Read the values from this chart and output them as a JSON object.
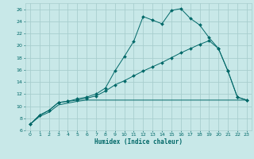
{
  "xlabel": "Humidex (Indice chaleur)",
  "background_color": "#c8e8e8",
  "grid_color": "#a8cece",
  "line_color": "#006868",
  "xlim": [
    -0.5,
    23.5
  ],
  "ylim": [
    6,
    27
  ],
  "yticks": [
    6,
    8,
    10,
    12,
    14,
    16,
    18,
    20,
    22,
    24,
    26
  ],
  "xticks": [
    0,
    1,
    2,
    3,
    4,
    5,
    6,
    7,
    8,
    9,
    10,
    11,
    12,
    13,
    14,
    15,
    16,
    17,
    18,
    19,
    20,
    21,
    22,
    23
  ],
  "line1_x": [
    0,
    1,
    2,
    3,
    4,
    5,
    6,
    7,
    8,
    9,
    10,
    11,
    12,
    13,
    14,
    15,
    16,
    17,
    18,
    19,
    20,
    21,
    22,
    23
  ],
  "line1_y": [
    7.0,
    8.5,
    9.3,
    10.6,
    10.8,
    11.2,
    11.5,
    12.0,
    13.0,
    15.8,
    18.2,
    20.7,
    24.8,
    24.2,
    23.6,
    25.8,
    26.1,
    24.5,
    23.4,
    21.3,
    19.5,
    15.8,
    11.5,
    11.0
  ],
  "line2_x": [
    0,
    1,
    2,
    3,
    4,
    5,
    6,
    7,
    8,
    9,
    10,
    11,
    12,
    13,
    14,
    15,
    16,
    17,
    18,
    19,
    20,
    21,
    22,
    23
  ],
  "line2_y": [
    7.0,
    8.5,
    9.3,
    10.6,
    10.8,
    11.0,
    11.3,
    11.7,
    12.5,
    13.5,
    14.2,
    15.0,
    15.8,
    16.5,
    17.2,
    18.0,
    18.8,
    19.5,
    20.2,
    20.8,
    19.5,
    15.8,
    11.5,
    11.0
  ],
  "line3_x": [
    0,
    1,
    2,
    3,
    4,
    5,
    6,
    7,
    8,
    9,
    10,
    11,
    12,
    13,
    14,
    15,
    16,
    17,
    18,
    19,
    20,
    21,
    22,
    23
  ],
  "line3_y": [
    7.0,
    8.3,
    9.0,
    10.2,
    10.5,
    10.8,
    11.0,
    11.0,
    11.0,
    11.0,
    11.0,
    11.0,
    11.0,
    11.0,
    11.0,
    11.0,
    11.0,
    11.0,
    11.0,
    11.0,
    11.0,
    11.0,
    11.0,
    11.0
  ],
  "tick_fontsize": 4.5,
  "xlabel_fontsize": 5.5,
  "marker_size": 2.0,
  "line_width": 0.7
}
